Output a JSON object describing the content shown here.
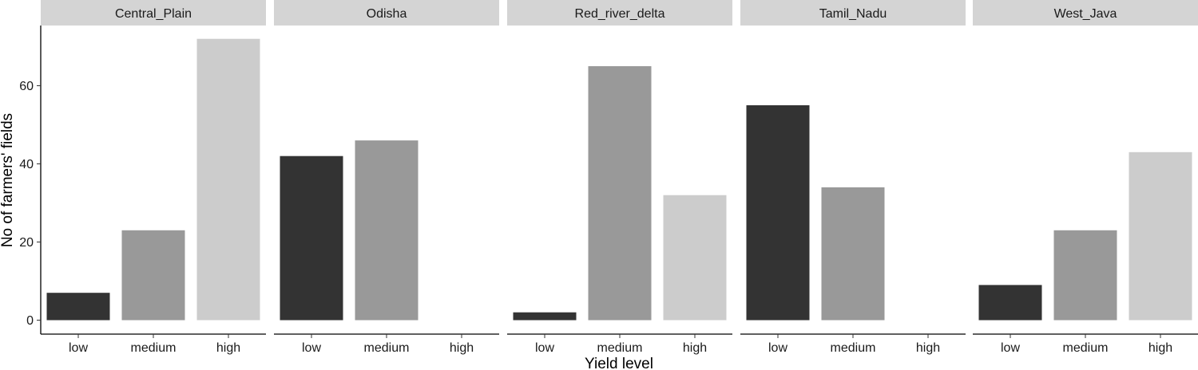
{
  "chart_data": {
    "type": "bar",
    "faceted": true,
    "xlabel": "Yield level",
    "ylabel": "No of farmers' fields",
    "categories": [
      "low",
      "medium",
      "high"
    ],
    "category_colors": [
      "#333333",
      "#999999",
      "#cccccc"
    ],
    "ylim": [
      0,
      74
    ],
    "yticks": [
      0,
      20,
      40,
      60
    ],
    "grid": false,
    "legend": "none",
    "panels": [
      {
        "name": "Central_Plain",
        "values": [
          7,
          23,
          72
        ]
      },
      {
        "name": "Odisha",
        "values": [
          42,
          46,
          0
        ]
      },
      {
        "name": "Red_river_delta",
        "values": [
          2,
          65,
          32
        ]
      },
      {
        "name": "Tamil_Nadu",
        "values": [
          55,
          34,
          0
        ]
      },
      {
        "name": "West_Java",
        "values": [
          9,
          23,
          43
        ]
      }
    ]
  }
}
